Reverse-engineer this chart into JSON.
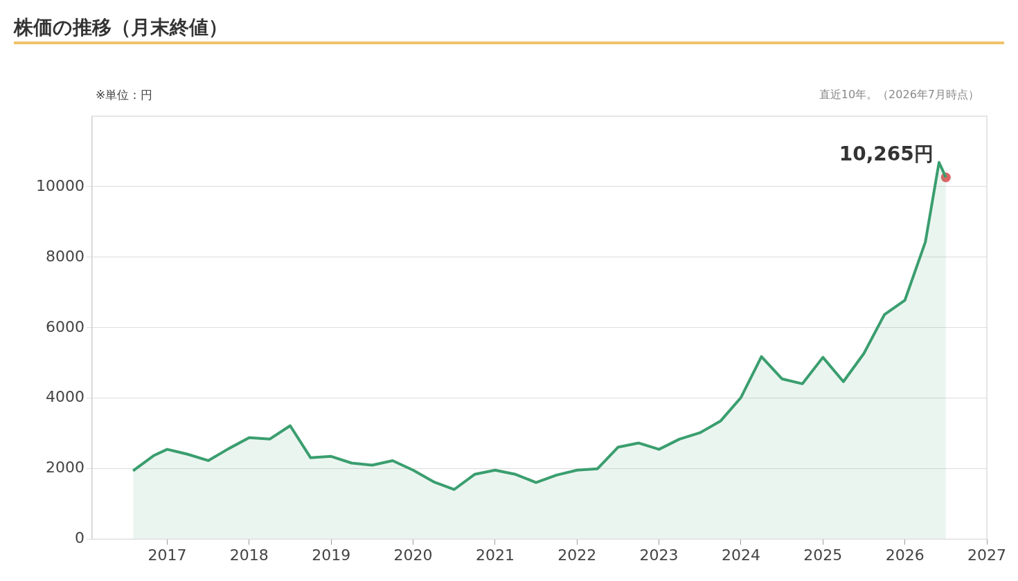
{
  "chart_data": {
    "type": "area",
    "title": "株価の推移（月末終値）",
    "ylabel": "※単位：円",
    "annotations": [
      "直近10年。（2026年7月時点）",
      {
        "text": "10,265円",
        "x": "2026-07",
        "y": 10265
      }
    ],
    "x": [
      "2016-08",
      "2016-11",
      "2017-01",
      "2017-04",
      "2017-07",
      "2017-10",
      "2018-01",
      "2018-04",
      "2018-07",
      "2018-10",
      "2019-01",
      "2019-04",
      "2019-07",
      "2019-10",
      "2020-01",
      "2020-04",
      "2020-07",
      "2020-10",
      "2021-01",
      "2021-04",
      "2021-07",
      "2021-10",
      "2022-01",
      "2022-04",
      "2022-07",
      "2022-10",
      "2023-01",
      "2023-04",
      "2023-07",
      "2023-10",
      "2024-01",
      "2024-04",
      "2024-07",
      "2024-10",
      "2025-01",
      "2025-04",
      "2025-07",
      "2025-10",
      "2026-01",
      "2026-04",
      "2026-06",
      "2026-07"
    ],
    "series": [
      {
        "color": "#3a9e6e",
        "marker": "none",
        "values": [
          1940,
          2370,
          2550,
          2410,
          2230,
          2570,
          2880,
          2840,
          3220,
          2310,
          2350,
          2160,
          2100,
          2230,
          1960,
          1630,
          1410,
          1840,
          1960,
          1840,
          1610,
          1820,
          1960,
          2000,
          2610,
          2730,
          2550,
          2840,
          3020,
          3350,
          4020,
          5180,
          4550,
          4410,
          5160,
          4470,
          5270,
          6370,
          6780,
          8430,
          10690,
          10265
        ]
      },
      {
        "type": "scatter",
        "color": "#e06666",
        "marker": "circle",
        "x": [
          "2026-07"
        ],
        "values": [
          10265
        ]
      }
    ],
    "xlim": [
      "2016-02",
      "2027"
    ],
    "xticks": [
      "2017",
      "2018",
      "2019",
      "2020",
      "2021",
      "2022",
      "2023",
      "2024",
      "2025",
      "2026",
      "2027"
    ],
    "ylim": [
      0,
      12000
    ],
    "yticks": [
      0,
      2000,
      4000,
      6000,
      8000,
      10000
    ],
    "grid": "y",
    "legend": false
  }
}
